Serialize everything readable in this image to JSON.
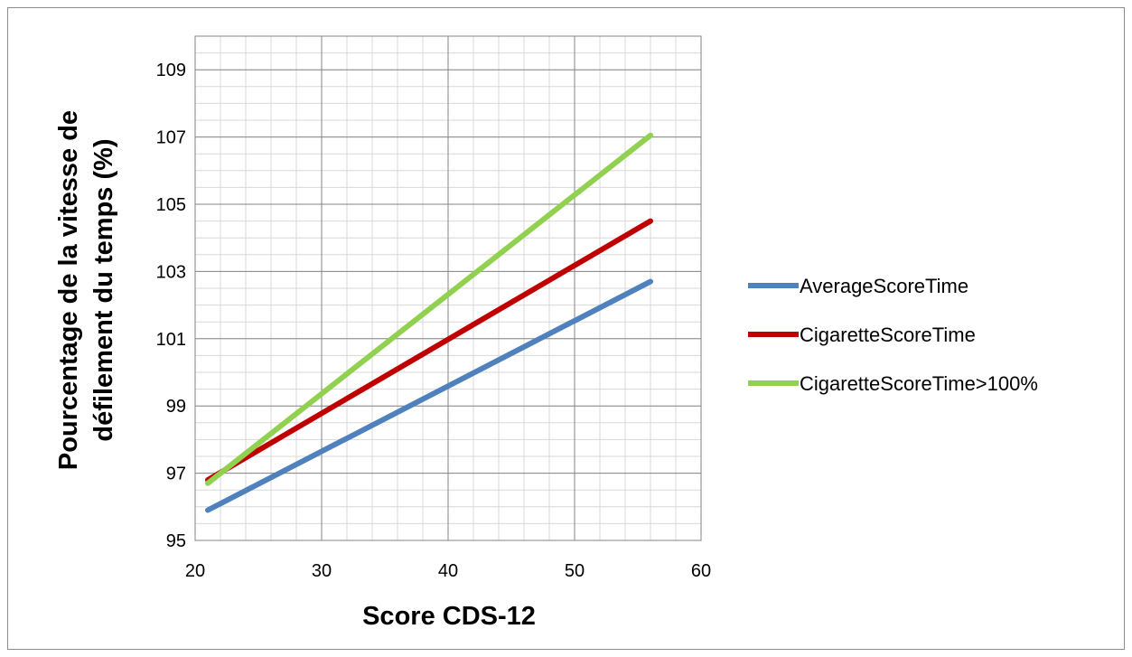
{
  "chart_data": {
    "type": "line",
    "title": "",
    "xlabel": "Score CDS-12",
    "ylabel_line1": "Pourcentage de la vitesse de",
    "ylabel_line2": "défilement du temps (%)",
    "xlim": [
      20,
      60
    ],
    "ylim": [
      95,
      110
    ],
    "x_ticks": [
      "20",
      "30",
      "40",
      "50",
      "60"
    ],
    "y_ticks": [
      "95",
      "97",
      "99",
      "101",
      "103",
      "105",
      "107",
      "109"
    ],
    "grid": true,
    "legend_position": "right",
    "series": [
      {
        "name": "AverageScoreTime",
        "color": "#4f81bd",
        "x": [
          21,
          56
        ],
        "y": [
          95.9,
          102.7
        ]
      },
      {
        "name": "CigaretteScoreTime",
        "color": "#c00000",
        "x": [
          21,
          56
        ],
        "y": [
          96.8,
          104.5
        ]
      },
      {
        "name": "CigaretteScoreTime>100%",
        "color": "#92d050",
        "x": [
          21,
          56
        ],
        "y": [
          96.7,
          107.05
        ]
      }
    ]
  }
}
